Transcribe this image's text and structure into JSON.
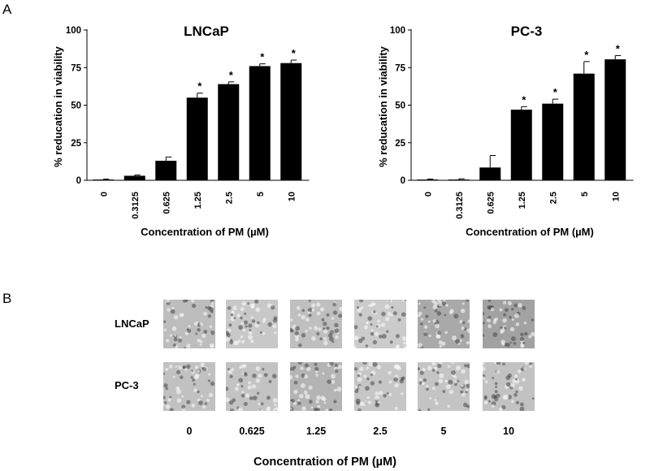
{
  "panels": {
    "a_label": "A",
    "b_label": "B"
  },
  "chart_data": [
    {
      "type": "bar",
      "title": "LNCaP",
      "categories": [
        "0",
        "0.3125",
        "0.625",
        "1.25",
        "2.5",
        "5",
        "10"
      ],
      "values": [
        0.5,
        3,
        13,
        55,
        64,
        76,
        78
      ],
      "errors": [
        0.3,
        0.5,
        2.5,
        3,
        1.5,
        1.5,
        2
      ],
      "significant": [
        false,
        false,
        false,
        true,
        true,
        true,
        true
      ],
      "marker": "*",
      "xlabel": "Concentration of PM (µM)",
      "ylabel": "% reducation in viability",
      "ylim": [
        0,
        100
      ],
      "yticks": [
        0,
        25,
        50,
        75,
        100
      ]
    },
    {
      "type": "bar",
      "title": "PC-3",
      "categories": [
        "0",
        "0.3125",
        "0.625",
        "1.25",
        "2.5",
        "5",
        "10"
      ],
      "values": [
        0.5,
        0.5,
        8.5,
        47,
        51,
        71,
        80.5
      ],
      "errors": [
        0.3,
        0.5,
        8,
        2,
        3,
        8,
        2.5
      ],
      "significant": [
        false,
        false,
        false,
        true,
        true,
        true,
        true
      ],
      "marker": "*",
      "xlabel": "Concentration of PM (µM)",
      "ylabel": "% reducation in viability",
      "ylim": [
        0,
        100
      ],
      "yticks": [
        0,
        25,
        50,
        75,
        100
      ]
    }
  ],
  "micrographs": {
    "rows": [
      "LNCaP",
      "PC-3"
    ],
    "columns": [
      "0",
      "0.625",
      "1.25",
      "2.5",
      "5",
      "10"
    ],
    "xlabel": "Concentration of PM (µM)"
  },
  "colors": {
    "bar": "#000000",
    "axis": "#000000"
  }
}
